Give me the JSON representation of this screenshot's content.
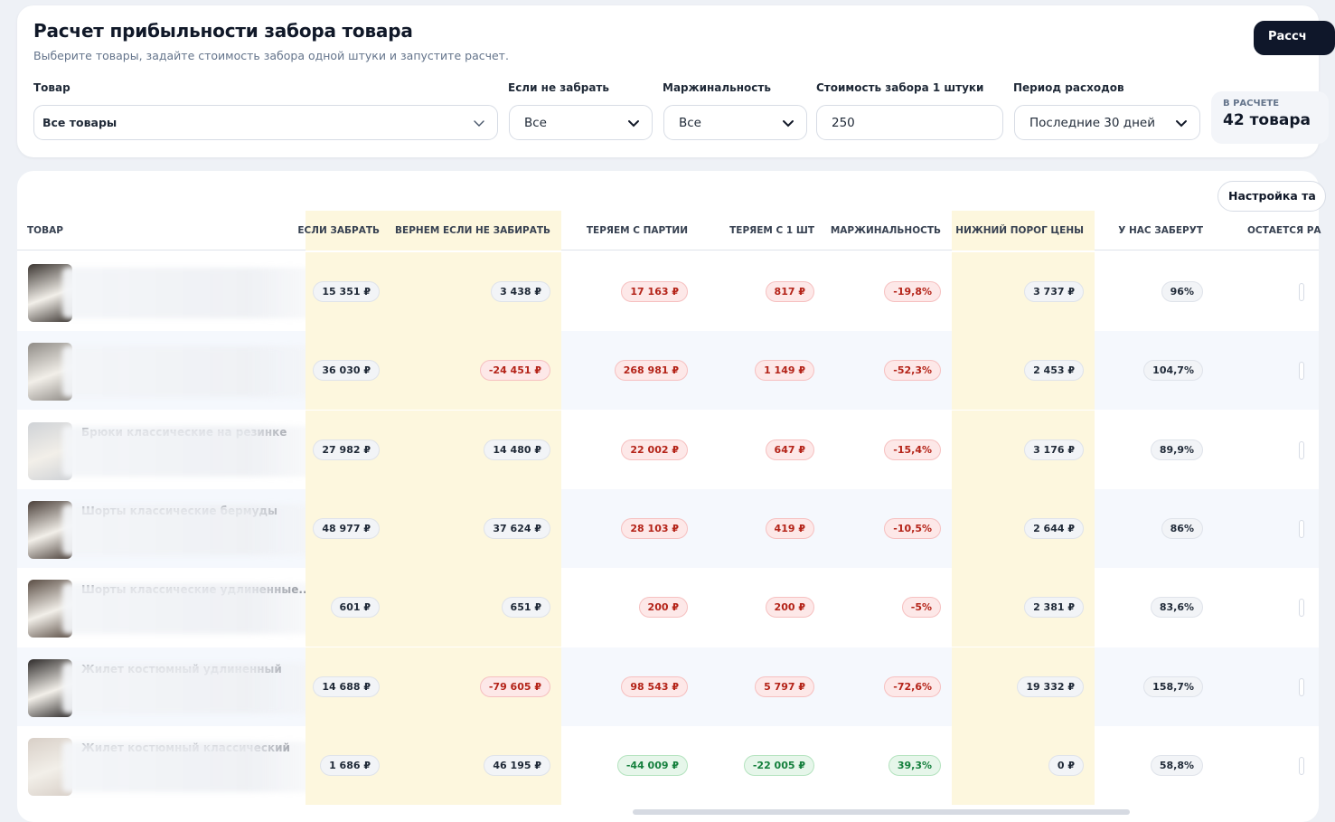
{
  "header": {
    "title": "Расчет прибыльности забора товара",
    "subtitle": "Выберите товары, задайте стоимость забора одной штуки и запустите расчет.",
    "calc_button": "Рассч"
  },
  "filters": {
    "product": {
      "label": "Товар",
      "value": "Все товары"
    },
    "if_not_taken": {
      "label": "Если не забрать",
      "value": "Все"
    },
    "margin": {
      "label": "Маржинальность",
      "value": "Все"
    },
    "pickup_cost": {
      "label": "Стоимость забора 1 штуки",
      "value": "250"
    },
    "period": {
      "label": "Период расходов",
      "value": "Последние 30 дней"
    }
  },
  "summary": {
    "caption": "В РАСЧЕТЕ",
    "value": "42 товара"
  },
  "table": {
    "settings_button": "Настройка та",
    "columns": [
      "ТОВАР",
      "ЕСЛИ ЗАБРАТЬ",
      "ВЕРНЕМ ЕСЛИ НЕ ЗАБИРАТЬ",
      "ТЕРЯЕМ С ПАРТИИ",
      "ТЕРЯЕМ С 1 ШТ",
      "МАРЖИНАЛЬНОСТЬ",
      "НИЖНИЙ ПОРОГ ЦЕНЫ",
      "У НАС ЗАБЕРУТ",
      "ОСТАЕТСЯ РА"
    ],
    "rows": [
      {
        "name": "",
        "thumb": "#3b3531",
        "take": "15 351 ₽",
        "back": "3 438 ₽",
        "loss_batch": "17 163 ₽",
        "loss_unit": "817 ₽",
        "margin": "-19,8%",
        "floor": "3 737 ₽",
        "taken": "96%",
        "batch_tone": "red",
        "unit_tone": "red",
        "margin_tone": "red",
        "back_tone": "gray"
      },
      {
        "name": "",
        "thumb": "#8f8b86",
        "take": "36 030 ₽",
        "back": "-24 451 ₽",
        "loss_batch": "268 981 ₽",
        "loss_unit": "1 149 ₽",
        "margin": "-52,3%",
        "floor": "2 453 ₽",
        "taken": "104,7%",
        "batch_tone": "red",
        "unit_tone": "red",
        "margin_tone": "red",
        "back_tone": "red"
      },
      {
        "name": "Брюки классические на резинке",
        "thumb": "#cfd2d6",
        "take": "27 982 ₽",
        "back": "14 480 ₽",
        "loss_batch": "22 002 ₽",
        "loss_unit": "647 ₽",
        "margin": "-15,4%",
        "floor": "3 176 ₽",
        "taken": "89,9%",
        "batch_tone": "red",
        "unit_tone": "red",
        "margin_tone": "red",
        "back_tone": "gray"
      },
      {
        "name": "Шорты классические бермуды",
        "thumb": "#4a3f39",
        "take": "48 977 ₽",
        "back": "37 624 ₽",
        "loss_batch": "28 103 ₽",
        "loss_unit": "419 ₽",
        "margin": "-10,5%",
        "floor": "2 644 ₽",
        "taken": "86%",
        "batch_tone": "red",
        "unit_tone": "red",
        "margin_tone": "red",
        "back_tone": "gray"
      },
      {
        "name": "Шорты классические удлиненные...",
        "thumb": "#5a4d44",
        "take": "601 ₽",
        "back": "651 ₽",
        "loss_batch": "200 ₽",
        "loss_unit": "200 ₽",
        "margin": "-5%",
        "floor": "2 381 ₽",
        "taken": "83,6%",
        "batch_tone": "red",
        "unit_tone": "red",
        "margin_tone": "red",
        "back_tone": "gray"
      },
      {
        "name": "Жилет костюмный удлиненный",
        "thumb": "#2e2b2a",
        "take": "14 688 ₽",
        "back": "-79 605 ₽",
        "loss_batch": "98 543 ₽",
        "loss_unit": "5 797 ₽",
        "margin": "-72,6%",
        "floor": "19 332 ₽",
        "taken": "158,7%",
        "batch_tone": "red",
        "unit_tone": "red",
        "margin_tone": "red",
        "back_tone": "red"
      },
      {
        "name": "Жилет костюмный классический",
        "thumb": "#d8cfc7",
        "take": "1 686 ₽",
        "back": "46 195 ₽",
        "loss_batch": "-44 009 ₽",
        "loss_unit": "-22 005 ₽",
        "margin": "39,3%",
        "floor": "0 ₽",
        "taken": "58,8%",
        "batch_tone": "green",
        "unit_tone": "green",
        "margin_tone": "green",
        "back_tone": "gray"
      }
    ]
  }
}
